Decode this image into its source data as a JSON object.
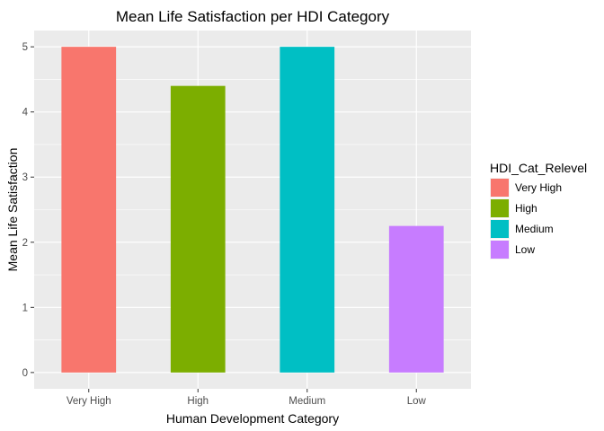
{
  "chart_data": {
    "type": "bar",
    "title": "Mean Life Satisfaction per HDI Category",
    "xlabel": "Human Development Category",
    "ylabel": "Mean Life Satisfaction",
    "categories": [
      "Very High",
      "High",
      "Medium",
      "Low"
    ],
    "values": [
      5.0,
      4.4,
      5.0,
      2.25
    ],
    "colors": [
      "#F8766D",
      "#7CAE00",
      "#00BFC4",
      "#C77CFF"
    ],
    "ylim": [
      -0.25,
      5.25
    ],
    "yticks": [
      0,
      1,
      2,
      3,
      4,
      5
    ],
    "grid": true,
    "panel_background": "#EBEBEB",
    "legend": {
      "title": "HDI_Cat_Relevel",
      "placement": "right",
      "entries": [
        "Very High",
        "High",
        "Medium",
        "Low"
      ]
    }
  }
}
